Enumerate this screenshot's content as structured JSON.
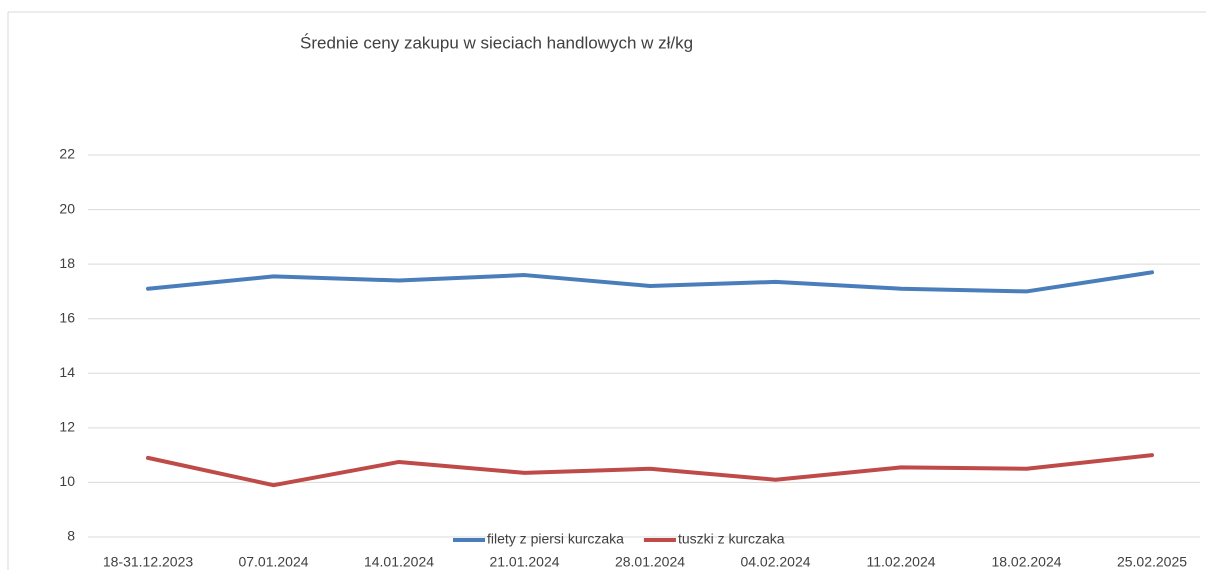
{
  "chart_data": {
    "type": "line",
    "title": "Średnie ceny zakupu w sieciach handlowych w zł/kg",
    "categories": [
      "18-31.12.2023",
      "07.01.2024",
      "14.01.2024",
      "21.01.2024",
      "28.01.2024",
      "04.02.2024",
      "11.02.2024",
      "18.02.2024",
      "25.02.2025"
    ],
    "series": [
      {
        "name": "filety z piersi kurczaka",
        "color": "#4a7ebb",
        "values": [
          17.1,
          17.55,
          17.4,
          17.6,
          17.2,
          17.35,
          17.1,
          17.0,
          17.7
        ]
      },
      {
        "name": "tuszki  z kurczaka",
        "color": "#be4b48",
        "values": [
          10.9,
          9.9,
          10.75,
          10.35,
          10.5,
          10.1,
          10.55,
          10.5,
          11.0
        ]
      }
    ],
    "ylim": [
      8,
      22
    ],
    "yticks": [
      8,
      10,
      12,
      14,
      16,
      18,
      20,
      22
    ],
    "grid": true,
    "legend": "bottom"
  }
}
